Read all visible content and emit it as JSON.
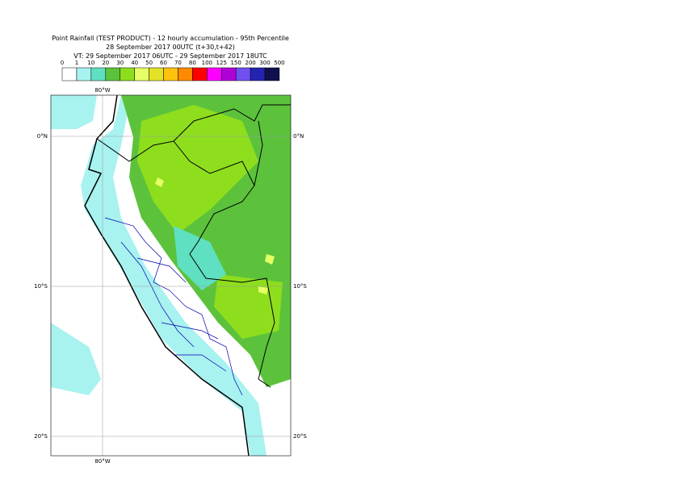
{
  "header": {
    "lines": [
      "Point Rainfall (TEST PRODUCT) - 12 hourly accumulation - 95th Percentile",
      "28 September 2017 00UTC (t+30,t+42)",
      "VT: 29 September 2017 06UTC - 29 September 2017 18UTC"
    ]
  },
  "legend": {
    "labels": [
      0,
      1,
      10,
      20,
      30,
      40,
      50,
      60,
      70,
      80,
      100,
      125,
      150,
      200,
      300,
      500
    ],
    "colors": [
      "#ffffff",
      "#a8f2f0",
      "#5fe0c0",
      "#5cc23c",
      "#8ede1e",
      "#e6ff66",
      "#e2e226",
      "#ffc20e",
      "#ff8a00",
      "#ff0000",
      "#ff00ff",
      "#b000d8",
      "#7050f0",
      "#2424b0",
      "#10104e"
    ]
  },
  "grid": {
    "lon_labels": [
      "80°W"
    ],
    "lat_labels": [
      "0°N",
      "10°S",
      "20°S"
    ]
  }
}
